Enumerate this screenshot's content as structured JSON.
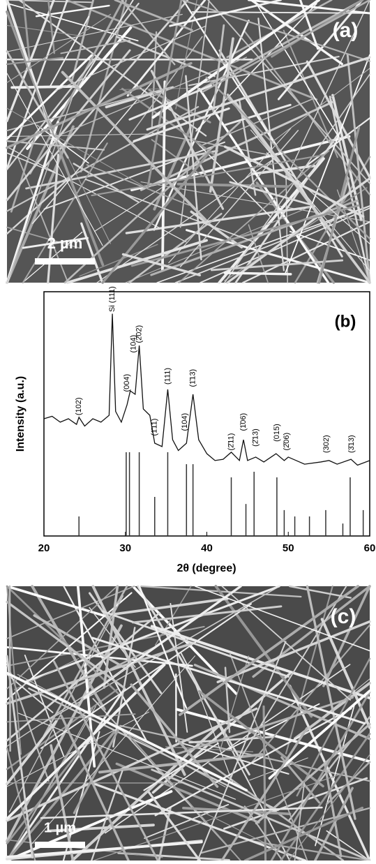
{
  "panel_a": {
    "label": "(a)",
    "scale_bar": "2 µm"
  },
  "chart_data": {
    "type": "line",
    "label": "(b)",
    "xlabel": "2θ (degree)",
    "ylabel": "Intensity (a.u.)",
    "xlim": [
      20,
      60
    ],
    "xticks": [
      20,
      30,
      40,
      50,
      60
    ],
    "ylim": [
      0,
      100
    ],
    "series": [
      {
        "color": "#111111",
        "x": [
          20,
          21,
          22,
          23,
          24,
          24.3,
          25,
          26,
          27,
          28,
          28.4,
          28.8,
          29.5,
          30.2,
          30.6,
          31.2,
          31.7,
          32.2,
          33,
          33.6,
          34.5,
          35.2,
          35.8,
          36.5,
          37.5,
          38.3,
          39,
          40,
          41,
          42,
          43,
          44,
          44.5,
          45,
          46,
          47,
          48.5,
          49.5,
          50,
          52,
          54,
          55,
          56,
          57.7,
          58.5,
          60
        ],
        "values": [
          48,
          49,
          46.6,
          48,
          45.7,
          48.6,
          45,
          48,
          46.6,
          49.4,
          91,
          51,
          46.6,
          53.7,
          59.4,
          58,
          78,
          52,
          49.4,
          38,
          36.6,
          60,
          39.4,
          35,
          38,
          58,
          39.4,
          33.7,
          30.9,
          31.4,
          34.3,
          30.9,
          39.4,
          30.9,
          32.3,
          30.3,
          33.7,
          30.9,
          32.3,
          29.4,
          30.3,
          30.9,
          29.4,
          31.4,
          29,
          30.9
        ]
      },
      {
        "type": "stick",
        "color": "#333333",
        "x": [
          24.3,
          30.1,
          30.5,
          31.7,
          33.6,
          35.2,
          37.5,
          38.3,
          43,
          44.8,
          45.8,
          48.6,
          49.5,
          50.8,
          52.6,
          54.6,
          56.7,
          57.6,
          59.2
        ],
        "values": [
          8,
          34.3,
          34.3,
          34.3,
          16,
          34.3,
          29.4,
          29.4,
          24,
          13.1,
          26.3,
          24,
          10.6,
          8,
          8,
          10.6,
          5.1,
          24,
          10.6
        ]
      }
    ],
    "annotations": [
      {
        "text": "(102)",
        "x": 24.3,
        "y": 49.4
      },
      {
        "text": "Si (111)",
        "x": 28.4,
        "y": 91.7
      },
      {
        "text": "(004)",
        "x": 30.2,
        "y": 59
      },
      {
        "text": "(104)",
        "x": 31.0,
        "y": 75
      },
      {
        "text": "(2̄02)",
        "x": 31.7,
        "y": 79
      },
      {
        "text": "(1̄11)",
        "x": 33.6,
        "y": 41
      },
      {
        "text": "(111)",
        "x": 35.2,
        "y": 62
      },
      {
        "text": "(104)",
        "x": 37.3,
        "y": 43
      },
      {
        "text": "(1̄13)",
        "x": 38.3,
        "y": 61
      },
      {
        "text": "(2̄11)",
        "x": 43,
        "y": 35
      },
      {
        "text": "(1̄06)",
        "x": 44.5,
        "y": 43
      },
      {
        "text": "(2̄13)",
        "x": 46,
        "y": 36.6
      },
      {
        "text": "(015)",
        "x": 48.6,
        "y": 38.6
      },
      {
        "text": "(2̄06)",
        "x": 49.8,
        "y": 35
      },
      {
        "text": "(302)",
        "x": 54.7,
        "y": 34
      },
      {
        "text": "(3̄13)",
        "x": 57.8,
        "y": 34
      }
    ]
  },
  "panel_c": {
    "label": "(c)",
    "scale_bar": "1 µm"
  }
}
